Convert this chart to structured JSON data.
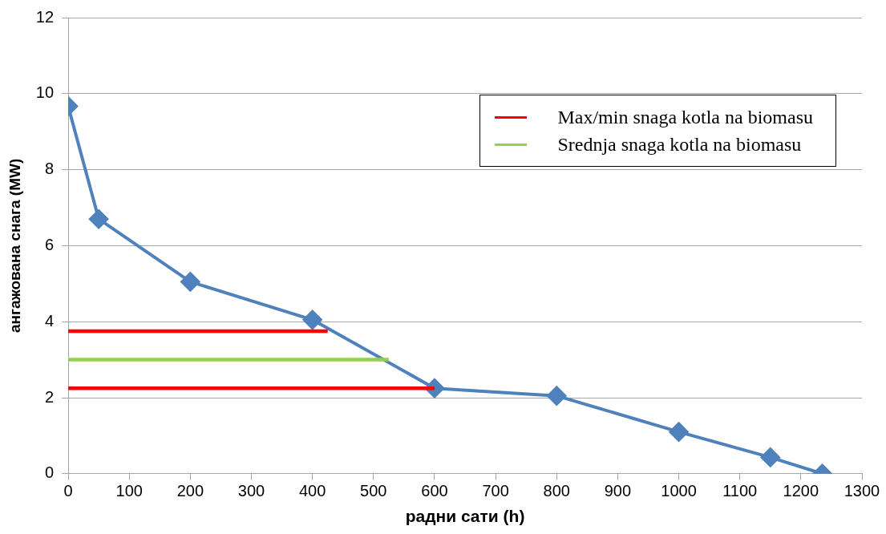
{
  "chart_data": {
    "type": "line",
    "xlabel": "радни сати (h)",
    "ylabel": "ангажована снага (MW)",
    "xlim": [
      0,
      1300
    ],
    "xticks": [
      0,
      100,
      200,
      300,
      400,
      500,
      600,
      700,
      800,
      900,
      1000,
      1100,
      1200,
      1300
    ],
    "ylim": [
      0,
      12
    ],
    "yticks": [
      0,
      2,
      4,
      6,
      8,
      10,
      12
    ],
    "grid": "y",
    "legend": "top right",
    "line_style": "solid",
    "series": [
      {
        "color": "#4f81bd",
        "marker": "diamond",
        "x": [
          0,
          50,
          200,
          400,
          600,
          800,
          1000,
          1150,
          1235
        ],
        "values": [
          9.67,
          6.7,
          5.05,
          4.05,
          2.25,
          2.05,
          1.1,
          0.43,
          0
        ]
      },
      {
        "name": "Max/min snaga kotla na biomasu",
        "color": "#ff0000",
        "marker": "none",
        "x": [
          0,
          425
        ],
        "values": [
          3.75,
          3.75
        ]
      },
      {
        "name": "Srednja snaga kotla na biomasu",
        "color": "#92d050",
        "marker": "none",
        "x": [
          0,
          525
        ],
        "values": [
          3,
          3
        ]
      },
      {
        "color": "#ff0000",
        "marker": "none",
        "x": [
          0,
          600
        ],
        "values": [
          2.25,
          2.25
        ]
      }
    ]
  }
}
